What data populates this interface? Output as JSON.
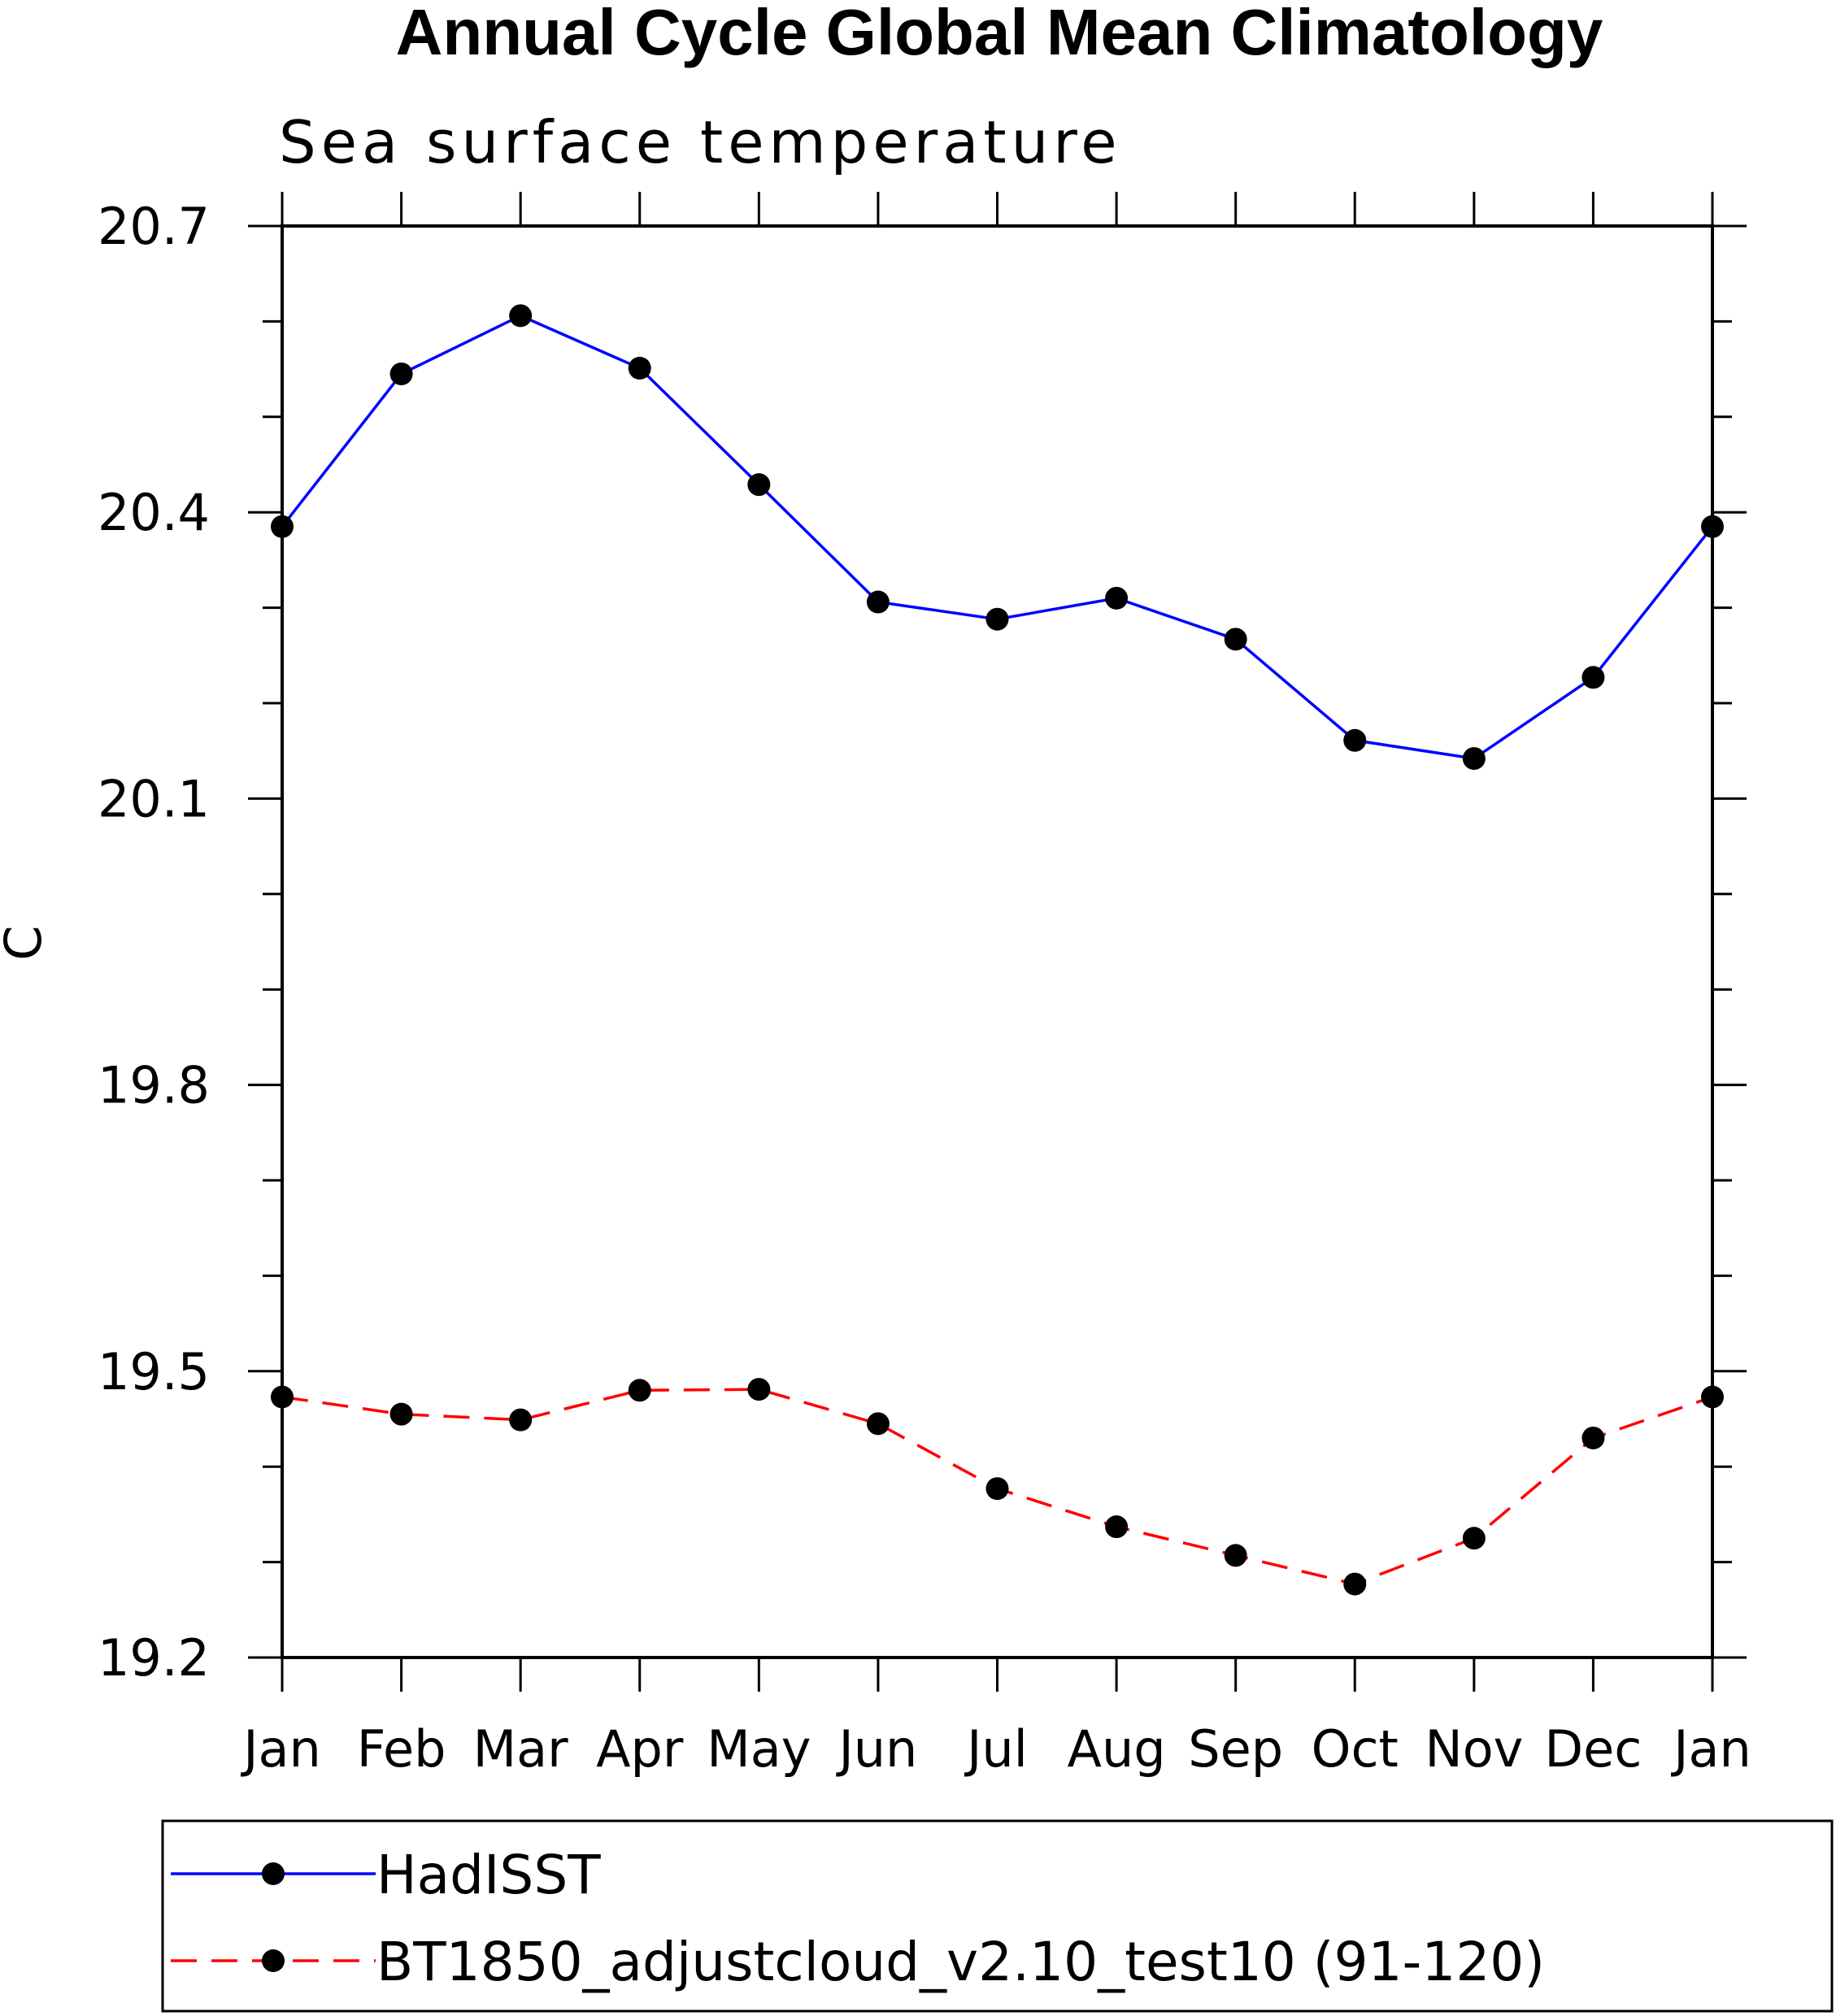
{
  "chart_data": {
    "type": "line",
    "title": "Annual Cycle Global Mean Climatology",
    "subtitle": "Sea surface temperature",
    "xlabel": "",
    "ylabel": "C",
    "categories": [
      "Jan",
      "Feb",
      "Mar",
      "Apr",
      "May",
      "Jun",
      "Jul",
      "Aug",
      "Sep",
      "Oct",
      "Nov",
      "Dec",
      "Jan"
    ],
    "ylim": [
      19.2,
      20.7
    ],
    "yticks": [
      "19.2",
      "19.5",
      "19.8",
      "20.1",
      "20.4",
      "20.7"
    ],
    "legend_position": "bottom",
    "series": [
      {
        "name": "HadISST",
        "color": "#0000ff",
        "style": "solid",
        "marker": "filled-circle",
        "values": [
          20.385,
          20.545,
          20.606,
          20.551,
          20.429,
          20.306,
          20.288,
          20.31,
          20.267,
          20.161,
          20.142,
          20.227,
          20.385
        ]
      },
      {
        "name": "BT1850_adjustcloud_v2.10_test10 (91-120)",
        "color": "#ff0000",
        "style": "dashed",
        "marker": "filled-circle",
        "values": [
          19.473,
          19.455,
          19.449,
          19.48,
          19.481,
          19.445,
          19.377,
          19.337,
          19.307,
          19.277,
          19.325,
          19.43,
          19.473
        ]
      }
    ]
  }
}
